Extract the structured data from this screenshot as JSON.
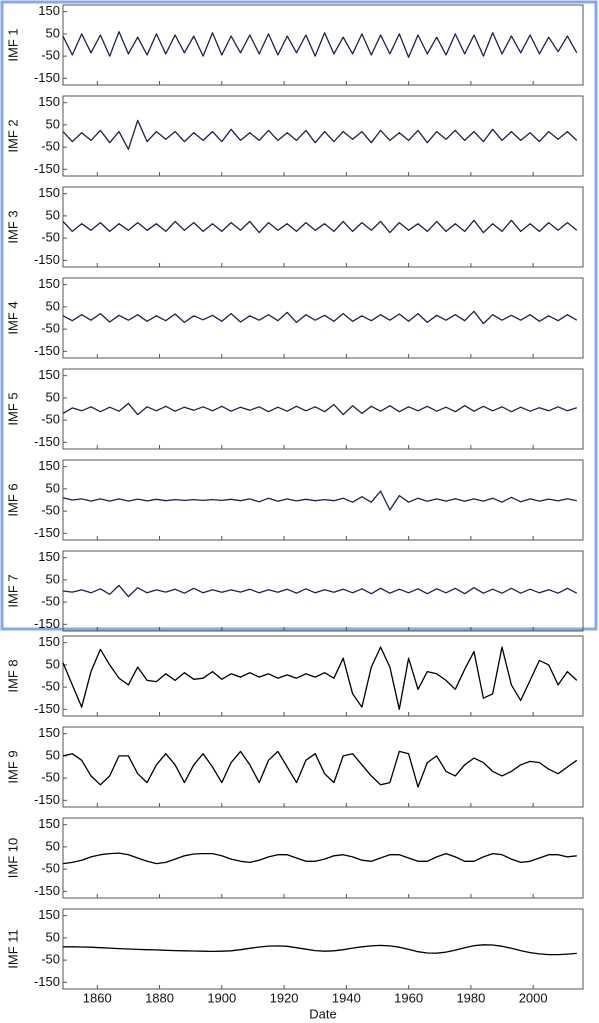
{
  "chart_data": {
    "type": "line",
    "xlabel": "Date",
    "xlim": [
      1849,
      2016
    ],
    "xticks": [
      1860,
      1880,
      1900,
      1920,
      1940,
      1960,
      1980,
      2000
    ],
    "ylim": [
      -180,
      180
    ],
    "yticks": [
      150,
      50,
      -50,
      -150
    ],
    "x": [
      1849,
      1852,
      1855,
      1858,
      1861,
      1864,
      1867,
      1870,
      1873,
      1876,
      1879,
      1882,
      1885,
      1888,
      1891,
      1894,
      1897,
      1900,
      1903,
      1906,
      1909,
      1912,
      1915,
      1918,
      1921,
      1924,
      1927,
      1930,
      1933,
      1936,
      1939,
      1942,
      1945,
      1948,
      1951,
      1954,
      1957,
      1960,
      1963,
      1966,
      1969,
      1972,
      1975,
      1978,
      1981,
      1984,
      1987,
      1990,
      1993,
      1996,
      1999,
      2002,
      2005,
      2008,
      2011,
      2014
    ],
    "series": [
      {
        "name": "IMF 1",
        "color": "#1b2152",
        "values": [
          40,
          -45,
          50,
          -35,
          45,
          -50,
          60,
          -40,
          35,
          -45,
          50,
          -40,
          45,
          -35,
          40,
          -50,
          55,
          -45,
          40,
          -35,
          45,
          -40,
          50,
          -45,
          40,
          -35,
          45,
          -50,
          55,
          -40,
          35,
          -40,
          50,
          -45,
          45,
          -40,
          50,
          -55,
          45,
          -40,
          35,
          -45,
          50,
          -40,
          45,
          -50,
          55,
          -40,
          40,
          -35,
          45,
          -40,
          35,
          -30,
          40,
          -35
        ]
      },
      {
        "name": "IMF 2",
        "color": "#1b2152",
        "values": [
          20,
          -25,
          15,
          -20,
          25,
          -30,
          20,
          -60,
          70,
          -25,
          20,
          -15,
          20,
          -25,
          15,
          -20,
          20,
          -25,
          30,
          -20,
          15,
          -20,
          25,
          -20,
          15,
          -20,
          25,
          -30,
          20,
          -25,
          20,
          -15,
          20,
          -30,
          25,
          -20,
          15,
          -20,
          25,
          -30,
          20,
          -15,
          25,
          -20,
          20,
          -25,
          30,
          -20,
          20,
          -20,
          15,
          -25,
          20,
          -15,
          20,
          -20
        ]
      },
      {
        "name": "IMF 3",
        "color": "#1b2152",
        "values": [
          25,
          -20,
          15,
          -15,
          20,
          -20,
          15,
          -15,
          20,
          -15,
          15,
          -20,
          25,
          -15,
          20,
          -20,
          15,
          -20,
          20,
          -15,
          25,
          -25,
          20,
          -15,
          15,
          -20,
          20,
          -15,
          15,
          -20,
          25,
          -20,
          20,
          -15,
          25,
          -25,
          20,
          -15,
          15,
          -20,
          25,
          -20,
          15,
          -20,
          30,
          -25,
          15,
          -20,
          30,
          -20,
          15,
          -20,
          20,
          -15,
          20,
          -15
        ]
      },
      {
        "name": "IMF 4",
        "color": "#1b2152",
        "values": [
          10,
          -12,
          15,
          -10,
          20,
          -18,
          12,
          -10,
          15,
          -15,
          10,
          -12,
          18,
          -20,
          10,
          -8,
          12,
          -15,
          20,
          -18,
          10,
          -10,
          15,
          -12,
          25,
          -20,
          15,
          -10,
          12,
          -15,
          20,
          -15,
          10,
          -12,
          15,
          -10,
          18,
          -15,
          20,
          -20,
          12,
          -10,
          15,
          -12,
          30,
          -25,
          15,
          -10,
          12,
          -10,
          15,
          -15,
          10,
          -12,
          15,
          -10
        ]
      },
      {
        "name": "IMF 5",
        "color": "#1b2152",
        "values": [
          -20,
          5,
          -8,
          10,
          -12,
          8,
          -10,
          25,
          -25,
          10,
          -8,
          12,
          -10,
          8,
          -6,
          10,
          -8,
          12,
          -10,
          8,
          -6,
          10,
          -12,
          8,
          -10,
          12,
          -8,
          10,
          -12,
          20,
          -25,
          15,
          -20,
          12,
          -10,
          15,
          -12,
          10,
          -8,
          12,
          -10,
          8,
          -12,
          15,
          -10,
          12,
          -8,
          10,
          -12,
          8,
          -10,
          6,
          -8,
          10,
          -8,
          6
        ]
      },
      {
        "name": "IMF 6",
        "color": "#1b2152",
        "values": [
          10,
          0,
          5,
          -5,
          5,
          -5,
          5,
          -5,
          4,
          -4,
          3,
          -3,
          2,
          -2,
          2,
          -2,
          2,
          -2,
          3,
          -3,
          5,
          -8,
          8,
          -6,
          5,
          -4,
          3,
          -3,
          2,
          -3,
          8,
          -10,
          15,
          -10,
          40,
          -45,
          20,
          -10,
          8,
          -6,
          5,
          -5,
          6,
          -6,
          5,
          -5,
          8,
          -10,
          12,
          -8,
          5,
          -5,
          4,
          -4,
          6,
          -3
        ]
      },
      {
        "name": "IMF 7",
        "color": "#1b2152",
        "values": [
          0,
          -5,
          5,
          -8,
          10,
          -15,
          25,
          -25,
          15,
          -8,
          5,
          -5,
          8,
          -10,
          12,
          -8,
          6,
          -6,
          5,
          -5,
          8,
          -8,
          6,
          -6,
          8,
          -10,
          10,
          -8,
          6,
          -6,
          8,
          -8,
          10,
          -12,
          12,
          -10,
          8,
          -8,
          10,
          -12,
          10,
          -8,
          12,
          -12,
          15,
          -10,
          8,
          -10,
          12,
          -10,
          8,
          -8,
          6,
          -10,
          12,
          -10
        ]
      },
      {
        "name": "IMF 8",
        "color": "#000000",
        "values": [
          60,
          -40,
          -140,
          20,
          120,
          50,
          -10,
          -40,
          40,
          -20,
          -25,
          10,
          -20,
          15,
          -15,
          -10,
          20,
          -15,
          10,
          -5,
          15,
          -5,
          10,
          -10,
          5,
          -10,
          10,
          -5,
          15,
          -10,
          80,
          -80,
          -140,
          40,
          130,
          40,
          -150,
          80,
          -60,
          20,
          10,
          -20,
          -60,
          30,
          110,
          -100,
          -80,
          130,
          -40,
          -110,
          -20,
          70,
          50,
          -40,
          20,
          -20
        ]
      },
      {
        "name": "IMF 9",
        "color": "#000000",
        "values": [
          50,
          60,
          30,
          -40,
          -80,
          -40,
          50,
          50,
          -30,
          -70,
          10,
          60,
          10,
          -70,
          10,
          60,
          0,
          -70,
          20,
          70,
          10,
          -70,
          30,
          70,
          0,
          -70,
          30,
          60,
          -30,
          -70,
          50,
          60,
          10,
          -40,
          -80,
          -70,
          70,
          60,
          -90,
          20,
          50,
          -20,
          -40,
          10,
          40,
          20,
          -20,
          -40,
          -20,
          10,
          25,
          20,
          -10,
          -30,
          0,
          30
        ]
      },
      {
        "name": "IMF 10",
        "color": "#000000",
        "values": [
          -25,
          -20,
          -10,
          5,
          15,
          20,
          22,
          15,
          0,
          -15,
          -25,
          -20,
          -5,
          10,
          18,
          20,
          20,
          10,
          -5,
          -15,
          -20,
          -10,
          5,
          15,
          15,
          0,
          -15,
          -15,
          -5,
          10,
          15,
          5,
          -10,
          -15,
          0,
          15,
          15,
          0,
          -15,
          -15,
          5,
          20,
          5,
          -15,
          -15,
          5,
          20,
          15,
          -5,
          -20,
          -15,
          0,
          15,
          15,
          5,
          10
        ]
      },
      {
        "name": "IMF 11",
        "color": "#000000",
        "values": [
          10,
          10,
          9,
          8,
          6,
          4,
          2,
          0,
          -2,
          -3,
          -4,
          -6,
          -7,
          -8,
          -9,
          -10,
          -11,
          -10,
          -8,
          -3,
          3,
          9,
          13,
          14,
          12,
          6,
          -1,
          -7,
          -10,
          -8,
          -3,
          4,
          10,
          14,
          16,
          14,
          8,
          -2,
          -12,
          -18,
          -19,
          -14,
          -5,
          6,
          15,
          19,
          18,
          12,
          3,
          -7,
          -16,
          -22,
          -25,
          -25,
          -23,
          -20
        ]
      }
    ]
  }
}
